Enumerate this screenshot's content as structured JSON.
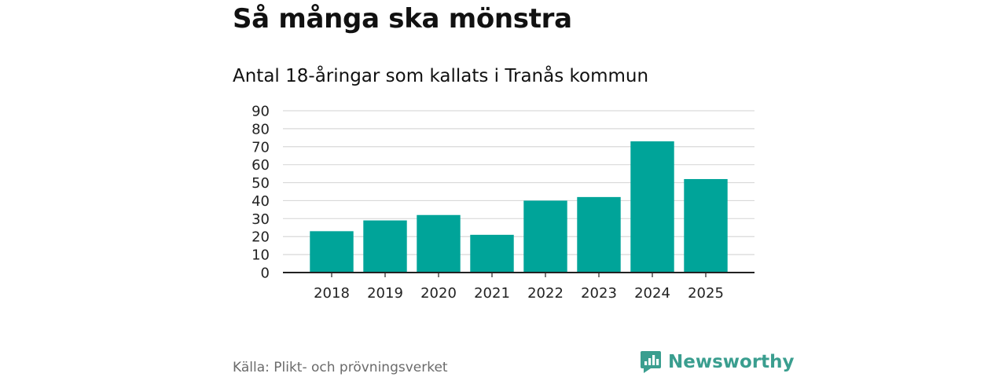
{
  "header": {
    "title": "Så många ska mönstra",
    "subtitle": "Antal 18-åringar som kallats i Tranås kommun"
  },
  "footer": {
    "source": "Källa: Plikt- och prövningsverket",
    "brand_name": "Newsworthy"
  },
  "colors": {
    "bar": "#00a499",
    "brand": "#3a9e8f",
    "grid": "#d9d9d9",
    "axis": "#222222",
    "source_text": "#6b6b6b"
  },
  "icons": {
    "brand_logo": "newsworthy-logo-icon"
  },
  "chart_data": {
    "type": "bar",
    "title": "",
    "subtitle": "",
    "xlabel": "",
    "ylabel": "",
    "categories": [
      "2018",
      "2019",
      "2020",
      "2021",
      "2022",
      "2023",
      "2024",
      "2025"
    ],
    "values": [
      23,
      29,
      32,
      21,
      40,
      42,
      73,
      52
    ],
    "ylim": [
      0,
      90
    ],
    "yticks": [
      0,
      10,
      20,
      30,
      40,
      50,
      60,
      70,
      80,
      90
    ],
    "grid": true,
    "legend": "none"
  }
}
